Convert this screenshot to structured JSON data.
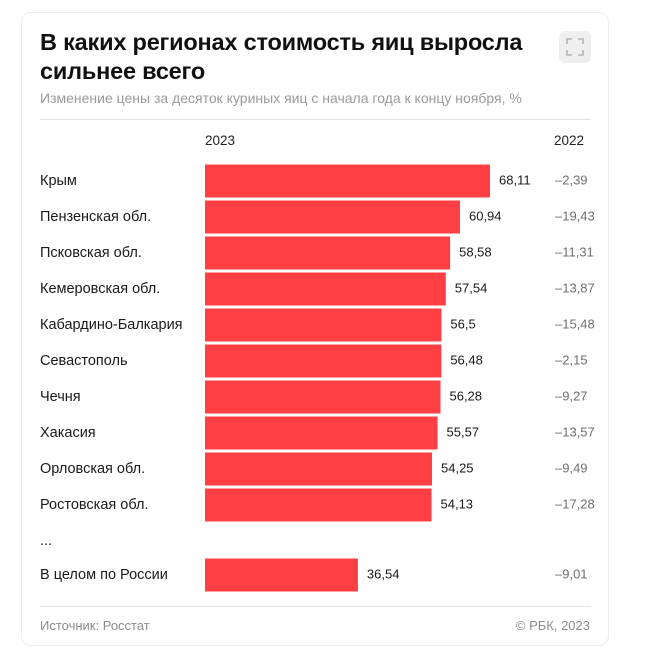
{
  "header": {
    "title": "В каких регионах стоимость яиц выросла сильнее всего",
    "subtitle": "Изменение цены за десяток куриных яиц с начала года к концу ноября, %",
    "expand_icon": "expand-icon"
  },
  "footer": {
    "source": "Источник: Росстат",
    "copyright": "© РБК, 2023"
  },
  "colors": {
    "bar": "#ff3f44",
    "text": "#1a1a1a",
    "muted": "#8c8c8c"
  },
  "chart_data": {
    "type": "bar",
    "orientation": "horizontal",
    "col_2023": "2023",
    "col_2022": "2022",
    "categories": [
      "Крым",
      "Пензенская обл.",
      "Псковская обл.",
      "Кемеровская обл.",
      "Кабардино-Балкария",
      "Севастополь",
      "Чечня",
      "Хакасия",
      "Орловская обл.",
      "Ростовская обл."
    ],
    "values_2023": [
      68.11,
      60.94,
      58.58,
      57.54,
      56.5,
      56.48,
      56.28,
      55.57,
      54.25,
      54.13
    ],
    "labels_2023": [
      "68,11",
      "60,94",
      "58,58",
      "57,54",
      "56,5",
      "56,48",
      "56,28",
      "55,57",
      "54,25",
      "54,13"
    ],
    "labels_2022": [
      "–2,39",
      "–19,43",
      "–11,31",
      "–13,87",
      "–15,48",
      "–2,15",
      "–9,27",
      "–13,57",
      "–9,49",
      "–17,28"
    ],
    "ellipsis": "...",
    "total": {
      "label": "В целом по России",
      "value_2023": 36.54,
      "label_2023": "36,54",
      "label_2022": "–9,01"
    }
  }
}
